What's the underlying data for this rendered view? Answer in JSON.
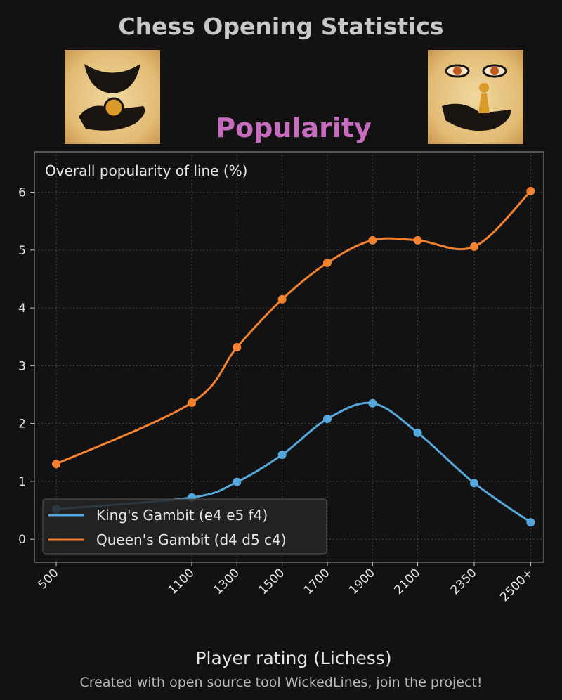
{
  "title": "Chess Opening Statistics",
  "subtitle": "Popularity",
  "subtitle_color": "#c86cc0",
  "footer": "Created with open source tool WickedLines, join the project!",
  "images": {
    "left": "hand-holding-queen-icon",
    "right": "eyes-hand-pawn-icon"
  },
  "chart_data": {
    "type": "line",
    "title": "Overall popularity of line (%)",
    "xlabel": "Player rating (Lichess)",
    "ylabel": "",
    "categories": [
      "500",
      "1100",
      "1300",
      "1500",
      "1700",
      "1900",
      "2100",
      "2350",
      "2500+"
    ],
    "ylim": [
      -0.4,
      6.7
    ],
    "yticks": [
      0,
      1,
      2,
      3,
      4,
      5,
      6
    ],
    "grid": true,
    "legend": "lower-left",
    "series": [
      {
        "name": "King's Gambit (e4 e5 f4)",
        "color": "#56a8dc",
        "values": [
          0.52,
          0.72,
          0.99,
          1.46,
          2.08,
          2.35,
          1.84,
          0.97,
          0.29
        ]
      },
      {
        "name": "Queen's Gambit (d4 d5 c4)",
        "color": "#f5822f",
        "values": [
          1.3,
          2.36,
          3.32,
          4.15,
          4.78,
          5.17,
          5.17,
          5.06,
          6.02
        ]
      }
    ]
  }
}
